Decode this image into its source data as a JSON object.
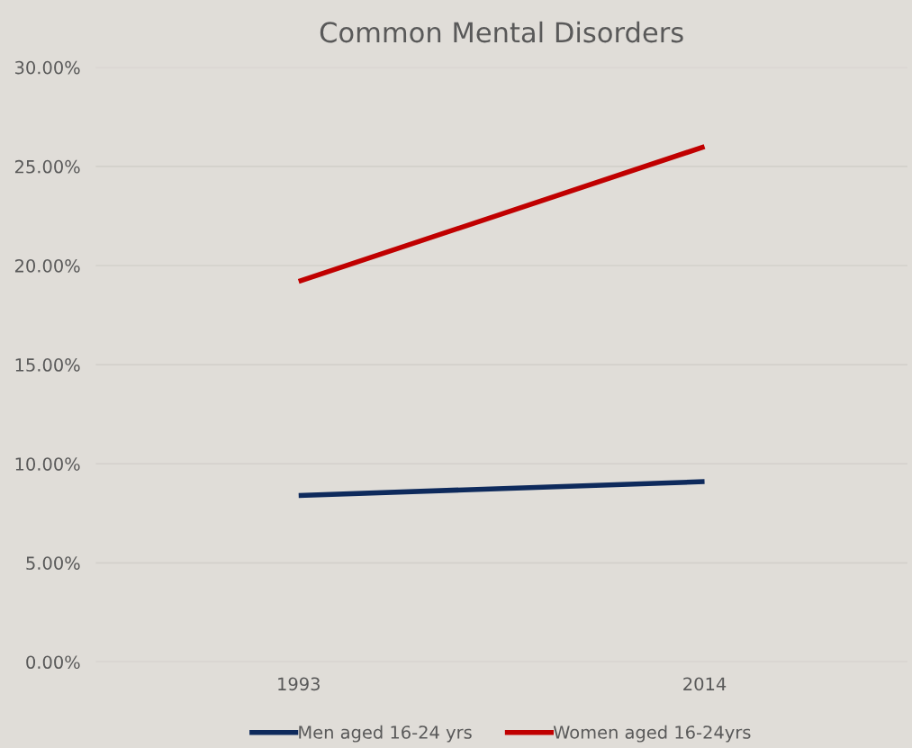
{
  "chart_data": {
    "type": "line",
    "title": "Common Mental Disorders",
    "categories": [
      "1993",
      "2014"
    ],
    "series": [
      {
        "name": "Men aged 16-24 yrs",
        "color": "#0e2a5c",
        "values": [
          8.4,
          9.1
        ]
      },
      {
        "name": "Women aged 16-24yrs",
        "color": "#c00000",
        "values": [
          19.2,
          26.0
        ]
      }
    ],
    "ylim": [
      0,
      30
    ],
    "yticks": [
      {
        "value": 0,
        "label": "0.00%"
      },
      {
        "value": 5,
        "label": "5.00%"
      },
      {
        "value": 10,
        "label": "10.00%"
      },
      {
        "value": 15,
        "label": "15.00%"
      },
      {
        "value": 20,
        "label": "20.00%"
      },
      {
        "value": 25,
        "label": "25.00%"
      },
      {
        "value": 30,
        "label": "30.00%"
      }
    ],
    "grid": "y",
    "legend": "bottom",
    "marker": "none",
    "line_style": "solid"
  }
}
